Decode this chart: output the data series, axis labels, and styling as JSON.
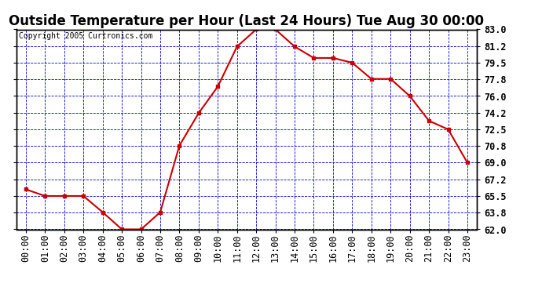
{
  "title": "Outside Temperature per Hour (Last 24 Hours) Tue Aug 30 00:00",
  "copyright": "Copyright 2005 Curtronics.com",
  "hours": [
    "00:00",
    "01:00",
    "02:00",
    "03:00",
    "04:00",
    "05:00",
    "06:00",
    "07:00",
    "08:00",
    "09:00",
    "10:00",
    "11:00",
    "12:00",
    "13:00",
    "14:00",
    "15:00",
    "16:00",
    "17:00",
    "18:00",
    "19:00",
    "20:00",
    "21:00",
    "22:00",
    "23:00"
  ],
  "temps": [
    66.2,
    65.5,
    65.5,
    65.5,
    63.8,
    62.0,
    62.0,
    63.8,
    70.8,
    74.2,
    77.0,
    81.2,
    83.0,
    83.0,
    81.2,
    80.0,
    80.0,
    79.5,
    77.8,
    77.8,
    76.0,
    73.4,
    72.5,
    69.0
  ],
  "ylim_min": 62.0,
  "ylim_max": 83.0,
  "yticks": [
    62.0,
    63.8,
    65.5,
    67.2,
    69.0,
    70.8,
    72.5,
    74.2,
    76.0,
    77.8,
    79.5,
    81.2,
    83.0
  ],
  "line_color": "#cc0000",
  "marker_color": "#cc0000",
  "bg_color": "#ffffff",
  "grid_color": "#0000cc",
  "title_fontsize": 12,
  "copyright_fontsize": 7,
  "tick_fontsize": 8.5
}
